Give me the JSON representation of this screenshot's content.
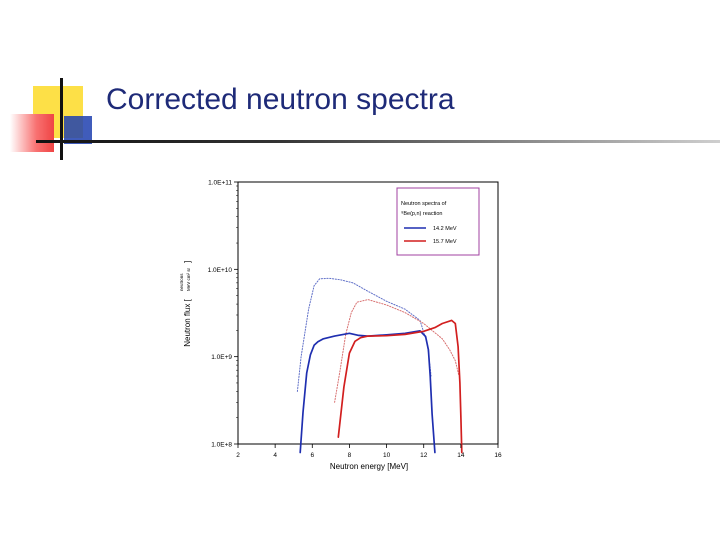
{
  "slide": {
    "title": "Corrected neutron spectra"
  },
  "colors": {
    "title": "#1e2a78",
    "series_blue": "#1f2fb0",
    "series_red": "#d21f1f",
    "legend_border": "#a040a0"
  },
  "chart_data": {
    "type": "line",
    "title": "",
    "xlabel": "Neutron energy [MeV]",
    "ylabel": "Neutron flux [ n×cm⁻²×MeV⁻¹×sr⁻¹ ]",
    "ylabel_main": "Neutron flux [",
    "ylabel_units_top": "neutrons",
    "ylabel_units_bottom": "MeV cm² sr",
    "ylabel_close": "]",
    "xlim": [
      2,
      16
    ],
    "ylim": [
      100000000.0,
      100000000000.0
    ],
    "yscale": "log",
    "xticks": [
      "2",
      "4",
      "6",
      "8",
      "10",
      "12",
      "14",
      "16"
    ],
    "yticks": [
      "1.0E+8",
      "1.0E+9",
      "1.0E+10",
      "1.0E+11"
    ],
    "grid": false,
    "legend_position": "top-right",
    "legend_title_line1": "Neutron spectra of",
    "legend_title_line2": "⁹Be(p,n) reaction",
    "series": [
      {
        "name": "14.2 MeV",
        "color": "#1f2fb0",
        "style": "solid",
        "x": [
          5.35,
          5.5,
          5.7,
          5.9,
          6.1,
          6.3,
          6.6,
          7.2,
          8.0,
          8.5,
          9.0,
          10.0,
          11.0,
          11.8,
          12.1,
          12.25,
          12.35,
          12.45,
          12.6
        ],
        "y": [
          80000000.0,
          230000000.0,
          650000000.0,
          1050000000.0,
          1350000000.0,
          1480000000.0,
          1600000000.0,
          1720000000.0,
          1850000000.0,
          1750000000.0,
          1720000000.0,
          1780000000.0,
          1850000000.0,
          1980000000.0,
          1700000000.0,
          1200000000.0,
          600000000.0,
          220000000.0,
          80000000.0
        ]
      },
      {
        "name": "15.7 MeV",
        "color": "#d21f1f",
        "style": "solid",
        "x": [
          7.4,
          7.7,
          8.0,
          8.3,
          8.6,
          9.0,
          10.0,
          11.0,
          12.0,
          12.6,
          13.0,
          13.5,
          13.7,
          13.85,
          13.95,
          14.0,
          14.05
        ],
        "y": [
          120000000.0,
          450000000.0,
          1100000000.0,
          1500000000.0,
          1650000000.0,
          1720000000.0,
          1740000000.0,
          1800000000.0,
          1950000000.0,
          2150000000.0,
          2400000000.0,
          2600000000.0,
          2400000000.0,
          1300000000.0,
          500000000.0,
          200000000.0,
          80000000.0
        ]
      },
      {
        "name": "",
        "color": "#6070c8",
        "style": "dotted",
        "x": [
          5.2,
          5.4,
          5.8,
          6.1,
          6.4,
          6.9,
          7.5,
          8.2,
          9.0,
          10.0,
          11.0,
          11.8,
          12.2,
          12.4
        ],
        "y": [
          400000000.0,
          1000000000.0,
          3500000000.0,
          6500000000.0,
          7800000000.0,
          7900000000.0,
          7600000000.0,
          7000000000.0,
          5600000000.0,
          4300000000.0,
          3500000000.0,
          2600000000.0,
          1400000000.0,
          600000000.0
        ]
      },
      {
        "name": "",
        "color": "#d87070",
        "style": "dotted",
        "x": [
          7.2,
          7.5,
          7.8,
          8.1,
          8.4,
          9.0,
          10.0,
          11.0,
          12.0,
          13.0,
          13.4,
          13.7,
          13.9
        ],
        "y": [
          300000000.0,
          700000000.0,
          1800000000.0,
          3200000000.0,
          4200000000.0,
          4500000000.0,
          3900000000.0,
          3200000000.0,
          2400000000.0,
          1600000000.0,
          1200000000.0,
          900000000.0,
          600000000.0
        ]
      }
    ]
  }
}
